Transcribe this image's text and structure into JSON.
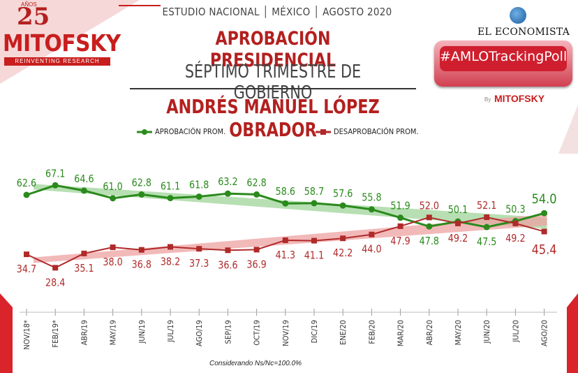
{
  "header": {
    "subtitle": "ESTUDIO NACIONAL │ MÉXICO │ AGOSTO 2020",
    "title": "APROBACIÓN PRESIDENCIAL",
    "title2": "SÉPTIMO TRIMESTRE DE GOBIERNO",
    "title3": "ANDRÉS MANUEL LÓPEZ OBRADOR"
  },
  "logo": {
    "number": "25",
    "anos": "AÑOS",
    "name": "MITOFSKY",
    "tagline": "REINVENTING RESEARCH"
  },
  "partner": {
    "name": "EL ECONOMISTA",
    "poll": "#AMLOTrackingPoll",
    "by": "By",
    "by_name": "MITOFSKY"
  },
  "note": "Considerando Ns/Nc=100.0%",
  "colors": {
    "approval": "#2a8a1c",
    "disapproval": "#b02a2a",
    "approval_band": "#9fd49a",
    "disapproval_band": "#eea1a1"
  },
  "chart_data": {
    "type": "line",
    "categories": [
      "NOV/18*",
      "FEB/19*",
      "ABR/19",
      "MAY/19",
      "JUN/19",
      "JUL/19",
      "AGO/19",
      "SEP/19",
      "OCT/19",
      "NOV/19",
      "DIC/19",
      "ENE/20",
      "FEB/20",
      "MAR/20",
      "ABR/20",
      "MAY/20",
      "JUN/20",
      "JUL/20",
      "AGO/20"
    ],
    "series": [
      {
        "name": "APROBACIÓN PROM.",
        "values": [
          62.6,
          67.1,
          64.6,
          61.0,
          62.8,
          61.1,
          61.8,
          63.2,
          62.8,
          58.6,
          58.7,
          57.6,
          55.8,
          51.9,
          47.8,
          50.1,
          47.5,
          50.3,
          54.0
        ]
      },
      {
        "name": "DESAPROBACIÓN PROM.",
        "values": [
          34.7,
          28.4,
          35.1,
          38.0,
          36.8,
          38.2,
          37.3,
          36.6,
          36.9,
          41.3,
          41.1,
          42.2,
          44.0,
          47.9,
          52.0,
          49.2,
          52.1,
          49.2,
          45.4
        ]
      }
    ],
    "labels": {
      "approval": [
        "62.6",
        "67.1",
        "64.6",
        "61.0",
        "62.8",
        "61.1",
        "61.8",
        "63.2",
        "62.8",
        "58.6",
        "58.7",
        "57.6",
        "55.8",
        "51.9",
        "47.8",
        "50.1",
        "47.5",
        "50.3",
        "54.0"
      ],
      "disapproval": [
        "34.7",
        "28.4",
        "35.1",
        "38.0",
        "36.8",
        "38.2",
        "37.3",
        "36.6",
        "36.9",
        "41.3",
        "41.1",
        "42.2",
        "44.0",
        "47.9",
        "52.0",
        "49.2",
        "52.1",
        "49.2",
        "45.4"
      ]
    },
    "trend": true,
    "grid": false,
    "legend_position": "top"
  }
}
